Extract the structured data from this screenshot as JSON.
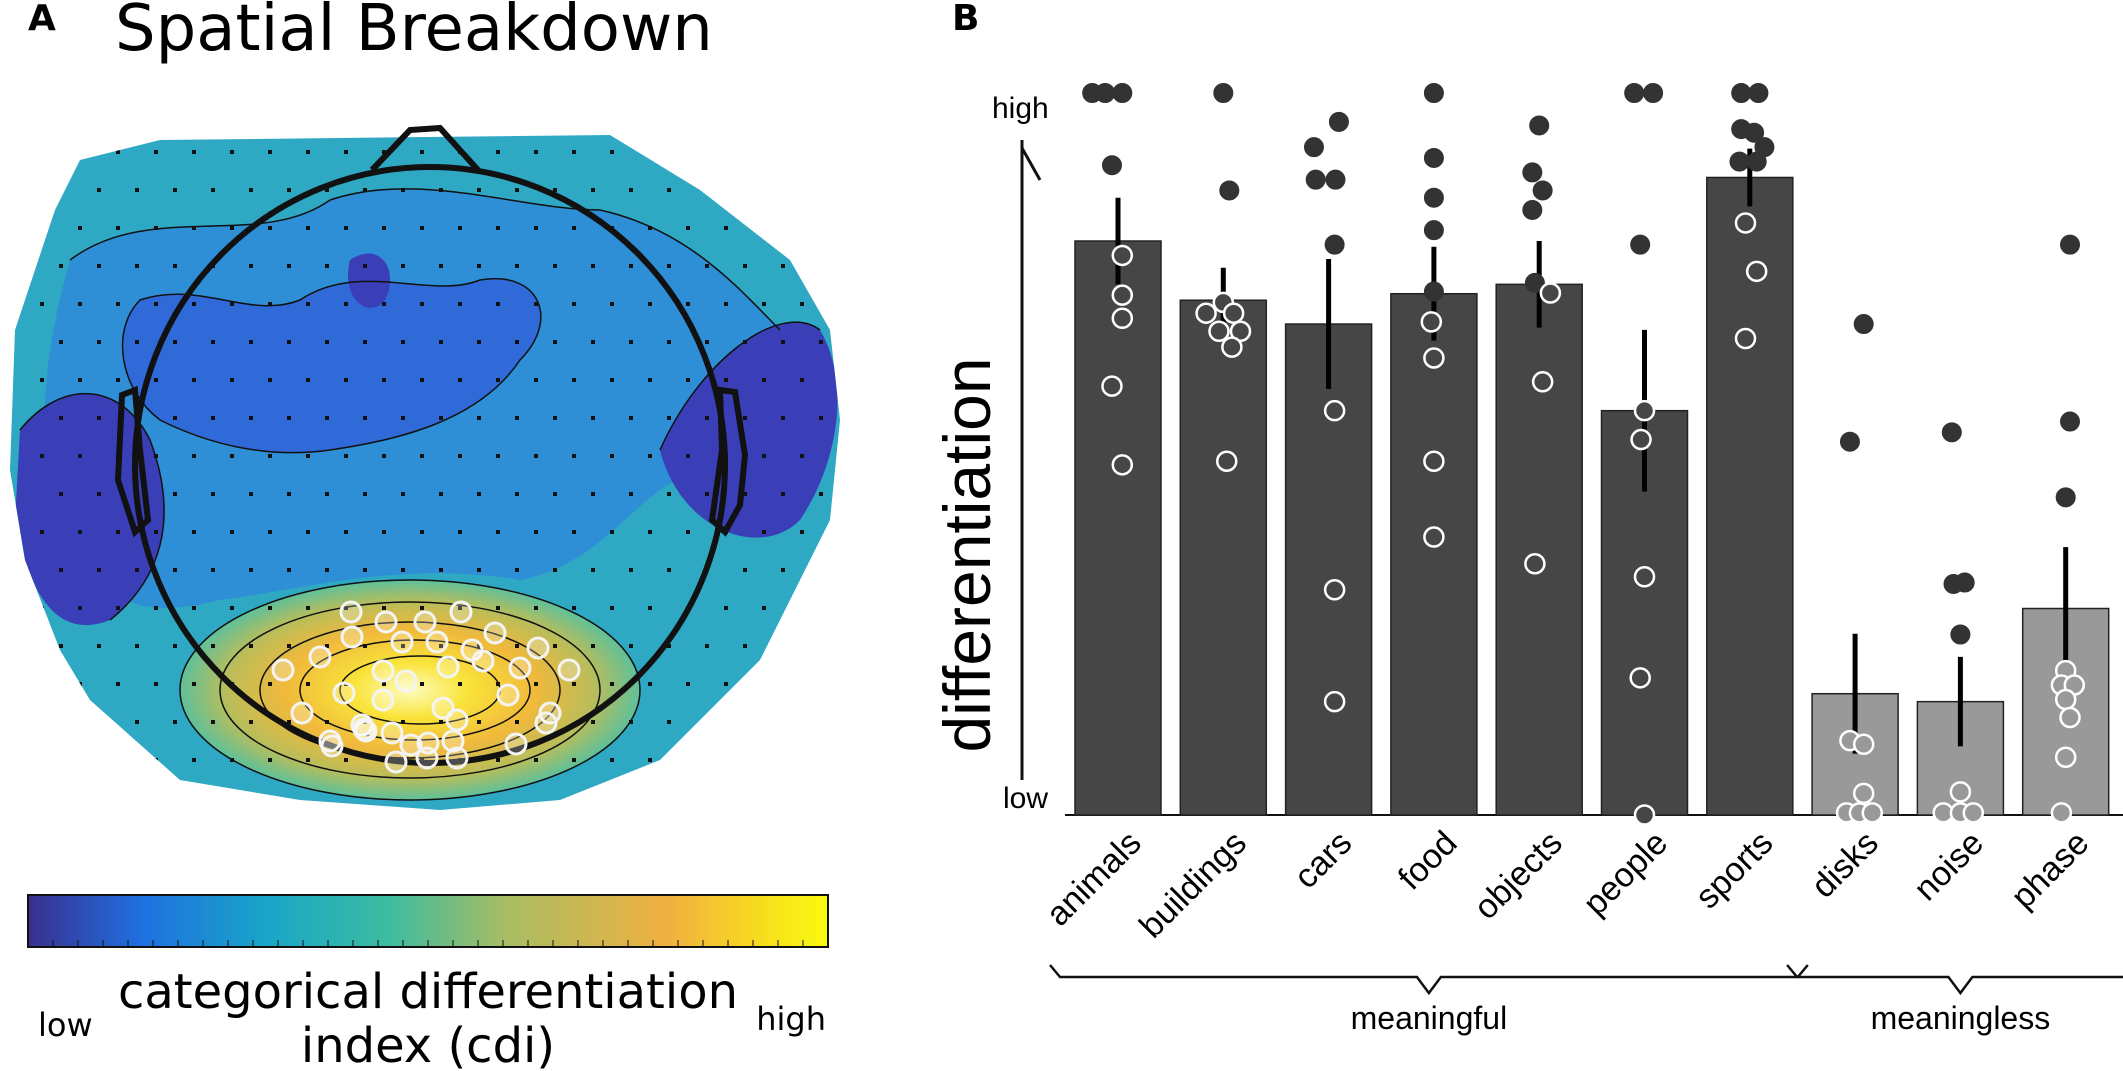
{
  "panel_a": {
    "letter": "A",
    "title": "Spatial Breakdown",
    "colorbar": {
      "label_line1": "categorical differentiation",
      "label_line2": "index (cdi)",
      "low": "low",
      "high": "high",
      "colors": [
        "#3a2f8f",
        "#1f6fe0",
        "#19a6c8",
        "#3cbca0",
        "#a9bd63",
        "#f0b040",
        "#f8e21a",
        "#f8fa10"
      ]
    },
    "palette": {
      "outer": "#2fa8c4",
      "mid": "#2f8fd6",
      "inner": "#2f6ad8",
      "deep": "#3a3fb8",
      "hot1": "#5ec09a",
      "hot2": "#b9bd5a",
      "hot3": "#f0b93c",
      "hot4": "#f9e43a",
      "hot5": "#fbfb9a"
    }
  },
  "chart_data": {
    "type": "bar",
    "panel_letter": "B",
    "ylabel": "differentiation",
    "y_high_label": "high",
    "y_low_label": "low",
    "ylim": [
      0,
      1
    ],
    "categories": [
      "animals",
      "buildings",
      "cars",
      "food",
      "objects",
      "people",
      "sports",
      "disks",
      "noise",
      "phase"
    ],
    "values": [
      0.795,
      0.713,
      0.68,
      0.722,
      0.735,
      0.56,
      0.883,
      0.168,
      0.157,
      0.286
    ],
    "errors": [
      0.06,
      0.045,
      0.09,
      0.065,
      0.06,
      0.112,
      0.04,
      0.083,
      0.062,
      0.085
    ],
    "bar_colors": {
      "meaningful": "#464646",
      "meaningless": "#999999"
    },
    "group_assignment": [
      "meaningful",
      "meaningful",
      "meaningful",
      "meaningful",
      "meaningful",
      "meaningful",
      "meaningful",
      "meaningless",
      "meaningless",
      "meaningless"
    ],
    "points": [
      [
        [
          -0.3,
          1.0
        ],
        [
          -0.15,
          1.0
        ],
        [
          0.05,
          1.0
        ],
        [
          -0.07,
          0.9
        ],
        [
          0.05,
          0.775
        ],
        [
          0.05,
          0.72
        ],
        [
          0.05,
          0.688
        ],
        [
          -0.07,
          0.594
        ],
        [
          0.05,
          0.485
        ]
      ],
      [
        [
          0.0,
          1.0
        ],
        [
          0.07,
          0.865
        ],
        [
          0.0,
          0.71
        ],
        [
          0.12,
          0.695
        ],
        [
          -0.2,
          0.695
        ],
        [
          -0.05,
          0.67
        ],
        [
          0.2,
          0.67
        ],
        [
          0.1,
          0.648
        ],
        [
          0.04,
          0.49
        ]
      ],
      [
        [
          -0.17,
          0.925
        ],
        [
          0.12,
          0.96
        ],
        [
          -0.15,
          0.88
        ],
        [
          0.08,
          0.88
        ],
        [
          0.07,
          0.79
        ],
        [
          0.07,
          0.56
        ],
        [
          0.07,
          0.312
        ],
        [
          0.07,
          0.157
        ]
      ],
      [
        [
          0.0,
          1.0
        ],
        [
          0.0,
          0.91
        ],
        [
          0.0,
          0.855
        ],
        [
          0.0,
          0.81
        ],
        [
          0.0,
          0.725
        ],
        [
          -0.03,
          0.683
        ],
        [
          0.0,
          0.633
        ],
        [
          0.0,
          0.49
        ],
        [
          0.0,
          0.385
        ]
      ],
      [
        [
          0.0,
          0.955
        ],
        [
          -0.08,
          0.89
        ],
        [
          0.04,
          0.865
        ],
        [
          -0.08,
          0.838
        ],
        [
          -0.05,
          0.737
        ],
        [
          0.13,
          0.723
        ],
        [
          0.04,
          0.6
        ],
        [
          -0.05,
          0.348
        ]
      ],
      [
        [
          -0.12,
          1.0
        ],
        [
          0.1,
          1.0
        ],
        [
          -0.05,
          0.79
        ],
        [
          0.0,
          0.56
        ],
        [
          -0.04,
          0.52
        ],
        [
          0.0,
          0.33
        ],
        [
          -0.05,
          0.19
        ],
        [
          0.0,
          0.0
        ]
      ],
      [
        [
          -0.1,
          1.0
        ],
        [
          0.1,
          1.0
        ],
        [
          -0.1,
          0.95
        ],
        [
          0.05,
          0.945
        ],
        [
          0.17,
          0.925
        ],
        [
          -0.12,
          0.905
        ],
        [
          0.08,
          0.905
        ],
        [
          -0.05,
          0.82
        ],
        [
          0.08,
          0.753
        ],
        [
          -0.05,
          0.66
        ]
      ],
      [
        [
          0.1,
          0.68
        ],
        [
          -0.06,
          0.517
        ],
        [
          -0.06,
          0.103
        ],
        [
          0.1,
          0.098
        ],
        [
          0.1,
          0.03
        ],
        [
          -0.1,
          0.003
        ],
        [
          0.05,
          0.003
        ],
        [
          0.2,
          0.003
        ]
      ],
      [
        [
          -0.1,
          0.53
        ],
        [
          -0.08,
          0.32
        ],
        [
          0.05,
          0.322
        ],
        [
          0.0,
          0.25
        ],
        [
          0.0,
          0.032
        ],
        [
          -0.2,
          0.003
        ],
        [
          0.0,
          0.003
        ],
        [
          0.15,
          0.003
        ]
      ],
      [
        [
          0.05,
          0.79
        ],
        [
          0.05,
          0.545
        ],
        [
          0.0,
          0.44
        ],
        [
          0.0,
          0.2
        ],
        [
          -0.05,
          0.18
        ],
        [
          0.1,
          0.18
        ],
        [
          0.0,
          0.16
        ],
        [
          0.05,
          0.135
        ],
        [
          0.0,
          0.08
        ],
        [
          -0.05,
          0.003
        ]
      ]
    ],
    "point_outline_threshold": "inside bar = white-outlined hollow, above bar = dark filled",
    "groups": [
      {
        "label": "meaningful",
        "from": 0,
        "to": 6
      },
      {
        "label": "meaningless",
        "from": 7,
        "to": 9
      }
    ]
  }
}
